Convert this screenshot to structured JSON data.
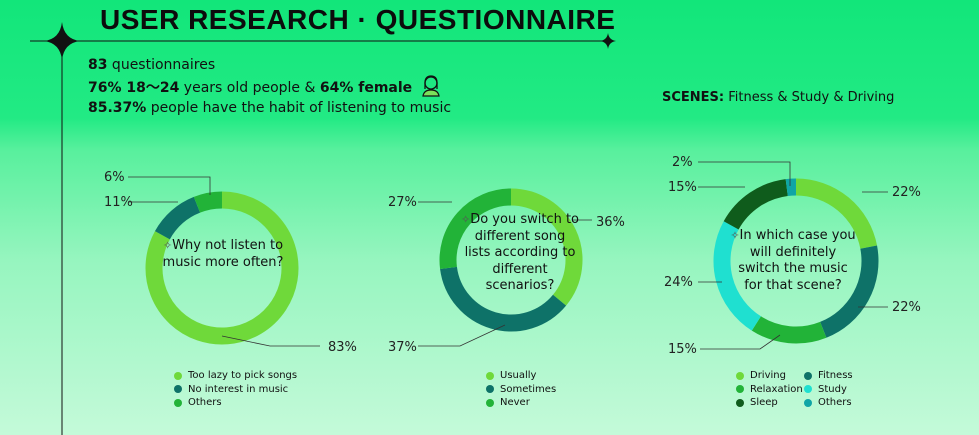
{
  "header": {
    "title": "USER RESEARCH · QUESTIONNAIRE",
    "stats": [
      {
        "bold": "83",
        "text": " questionnaires"
      },
      {
        "bold": "76% 18～24",
        "text": " years old people & ",
        "bold2": "64% female"
      },
      {
        "bold": "85.37%",
        "text": " people have the habit of listening to music"
      }
    ]
  },
  "scenes": {
    "label": "SCENES:",
    "value": " Fitness & Study & Driving"
  },
  "colors": {
    "light": "#6fd93a",
    "mid": "#22b338",
    "teal": "#0e7268",
    "dark": "#0f5c1c",
    "cyan": "#1fe0d0",
    "aqua": "#0fa5a6"
  },
  "chart_data": [
    {
      "type": "pie",
      "question": "Why not listen to music more often?",
      "categories": [
        "Too lazy to pick songs",
        "No interest in music",
        "Others"
      ],
      "values": [
        83,
        11,
        6
      ],
      "labels": [
        "83%",
        "11%",
        "6%"
      ]
    },
    {
      "type": "pie",
      "question": "Do you switch to different song lists according to different scenarios?",
      "categories": [
        "Usually",
        "Sometimes",
        "Never"
      ],
      "values": [
        36,
        37,
        27
      ],
      "labels": [
        "36%",
        "37%",
        "27%"
      ]
    },
    {
      "type": "pie",
      "question": "In which case you will definitely switch the music for that scene?",
      "categories": [
        "Driving",
        "Fitness",
        "Relaxation",
        "Study",
        "Sleep",
        "Others"
      ],
      "values": [
        22,
        22,
        15,
        24,
        15,
        2
      ],
      "labels": [
        "22%",
        "22%",
        "15%",
        "24%",
        "15%",
        "2%"
      ]
    }
  ]
}
